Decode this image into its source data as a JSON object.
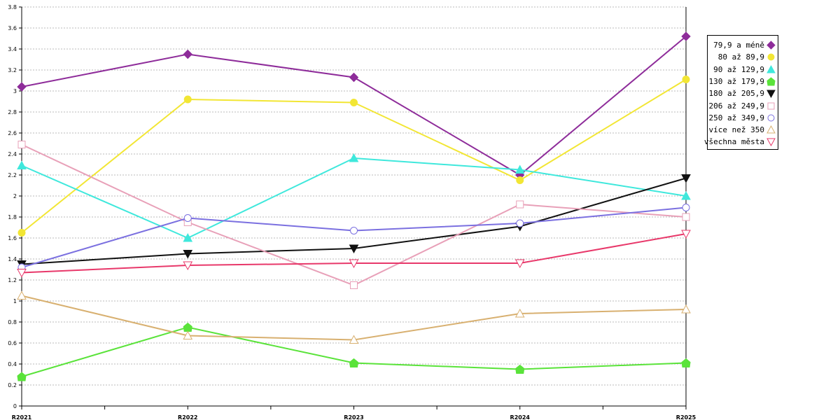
{
  "chart_data": {
    "type": "line",
    "title": "",
    "xlabel": "",
    "ylabel": "",
    "categories": [
      "R2021",
      "R2022",
      "R2023",
      "R2024",
      "R2025"
    ],
    "ylim": [
      0,
      3.8
    ],
    "yticks": [
      "0",
      "0.2",
      "0.4",
      "0.6",
      "0.8",
      "1",
      "1.2",
      "1.4",
      "1.6",
      "1.8",
      "2",
      "2.2",
      "2.4",
      "2.6",
      "2.8",
      "3",
      "3.2",
      "3.4",
      "3.6",
      "3.8"
    ],
    "grid": true,
    "legend_position": "right",
    "series": [
      {
        "name": "79,9 a méně",
        "color": "#8e2c9a",
        "marker": "diamond",
        "values": [
          3.04,
          3.35,
          3.13,
          2.2,
          3.52
        ]
      },
      {
        "name": "80 až 89,9",
        "color": "#f2e634",
        "marker": "circle",
        "values": [
          1.65,
          2.92,
          2.89,
          2.15,
          3.11
        ]
      },
      {
        "name": "90 až 129,9",
        "color": "#3fe8dc",
        "marker": "triangle-up",
        "values": [
          2.29,
          1.6,
          2.36,
          2.25,
          2.0
        ]
      },
      {
        "name": "130 až 179,9",
        "color": "#5ae33a",
        "marker": "pentagon",
        "values": [
          0.28,
          0.75,
          0.41,
          0.35,
          0.41
        ]
      },
      {
        "name": "180 až 205,9",
        "color": "#111111",
        "marker": "triangle-down",
        "values": [
          1.35,
          1.45,
          1.5,
          1.71,
          2.17
        ]
      },
      {
        "name": "206 až 249,9",
        "color": "#e8a0b8",
        "marker": "square-open",
        "values": [
          2.49,
          1.75,
          1.15,
          1.92,
          1.8
        ]
      },
      {
        "name": "250 až 349,9",
        "color": "#7b70e0",
        "marker": "circle-open",
        "values": [
          1.32,
          1.79,
          1.67,
          1.74,
          1.89
        ]
      },
      {
        "name": "více než 350",
        "color": "#d8b070",
        "marker": "triangle-up-open",
        "values": [
          1.05,
          0.67,
          0.63,
          0.88,
          0.92
        ]
      },
      {
        "name": "všechna města",
        "color": "#e8386a",
        "marker": "triangle-down-open",
        "values": [
          1.27,
          1.34,
          1.36,
          1.36,
          1.64
        ]
      }
    ]
  }
}
